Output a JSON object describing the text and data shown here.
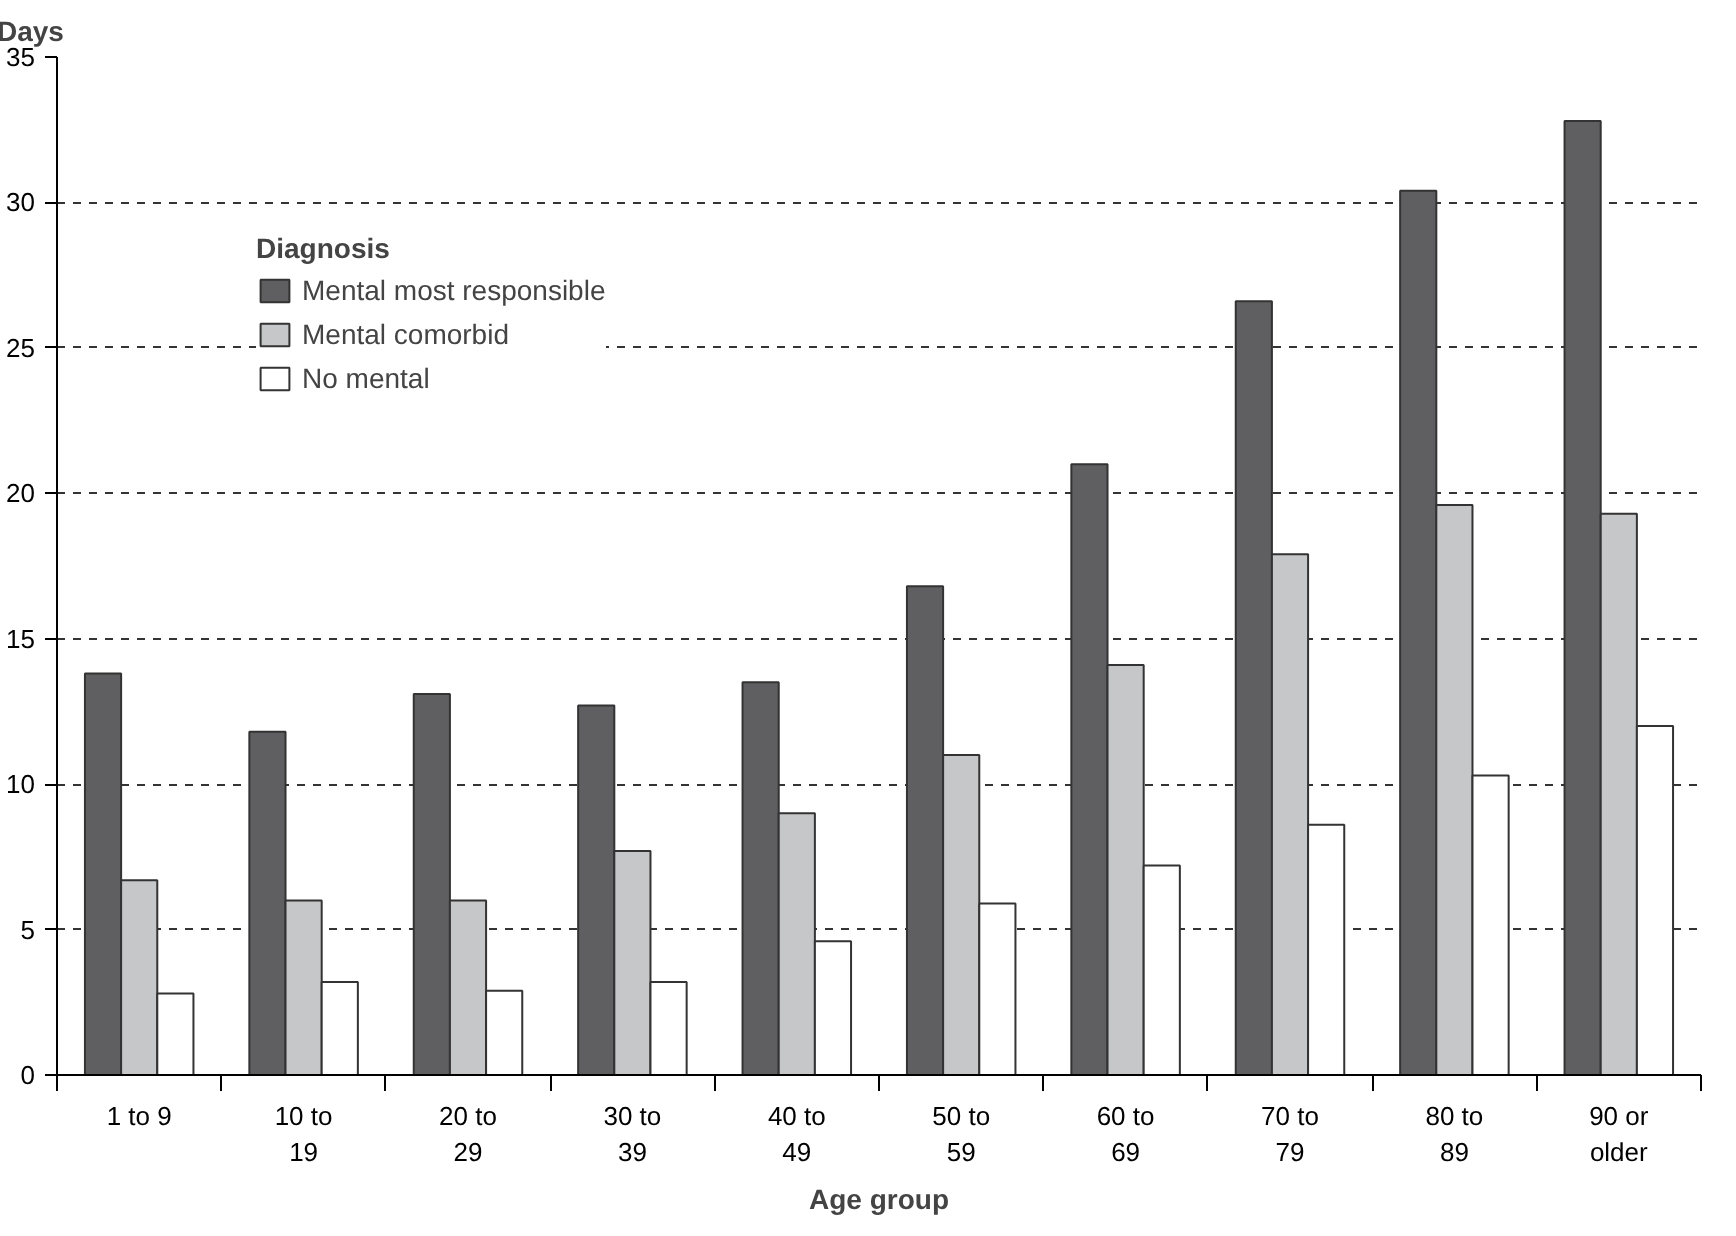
{
  "chart_data": {
    "type": "bar",
    "xlabel": "Age group",
    "ylabel": "Days",
    "legend_title": "Diagnosis",
    "categories": [
      "1 to 9",
      "10 to\n19",
      "20 to\n29",
      "30 to\n39",
      "40 to\n49",
      "50 to\n59",
      "60 to\n69",
      "70 to\n79",
      "80 to\n89",
      "90 or\nolder"
    ],
    "series": [
      {
        "name": "Mental most responsible",
        "color": "#5f5f61",
        "values": [
          13.8,
          11.8,
          13.1,
          12.7,
          13.5,
          16.8,
          21.0,
          26.6,
          30.4,
          32.8
        ]
      },
      {
        "name": "Mental comorbid",
        "color": "#c6c7c9",
        "values": [
          6.7,
          6.0,
          6.0,
          7.7,
          9.0,
          11.0,
          14.1,
          17.9,
          19.6,
          19.3
        ]
      },
      {
        "name": "No mental",
        "color": "#ffffff",
        "values": [
          2.8,
          3.2,
          2.9,
          3.2,
          4.6,
          5.9,
          7.2,
          8.6,
          10.3,
          12.0
        ]
      }
    ],
    "ylim": [
      0,
      35
    ],
    "yticks": [
      0,
      5,
      10,
      15,
      20,
      25,
      30,
      35
    ],
    "grid": "y",
    "legend": "top left"
  }
}
